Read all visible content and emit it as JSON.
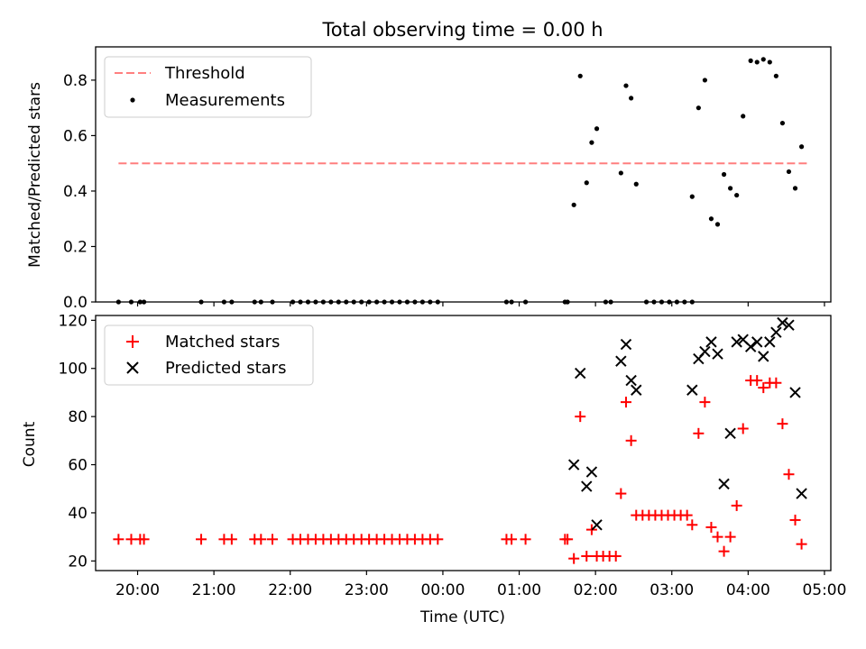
{
  "chart_data": [
    {
      "type": "scatter",
      "title": "Total observing time = 0.00 h",
      "xlabel": "",
      "ylabel": "Matched/Predicted stars",
      "xlim": [
        "19:27",
        "05:05"
      ],
      "ylim": [
        0,
        0.92
      ],
      "yticks": [
        "0.0",
        "0.2",
        "0.4",
        "0.6",
        "0.8"
      ],
      "grid": false,
      "legend_position": "top-left",
      "threshold": {
        "name": "Threshold",
        "value": 0.5,
        "x_range": [
          "19:45",
          "04:47"
        ],
        "color": "#ff7f7f",
        "style": "dashed"
      },
      "series": [
        {
          "name": "Measurements",
          "color": "#000000",
          "marker": "dot",
          "points": [
            [
              "19:45",
              0
            ],
            [
              "19:55",
              0
            ],
            [
              "20:02",
              0
            ],
            [
              "20:05",
              0
            ],
            [
              "20:50",
              0
            ],
            [
              "21:08",
              0
            ],
            [
              "21:14",
              0
            ],
            [
              "21:32",
              0
            ],
            [
              "21:37",
              0
            ],
            [
              "21:46",
              0
            ],
            [
              "22:02",
              0
            ],
            [
              "22:08",
              0
            ],
            [
              "22:14",
              0
            ],
            [
              "22:20",
              0
            ],
            [
              "22:26",
              0
            ],
            [
              "22:32",
              0
            ],
            [
              "22:38",
              0
            ],
            [
              "22:44",
              0
            ],
            [
              "22:50",
              0
            ],
            [
              "22:56",
              0
            ],
            [
              "23:02",
              0
            ],
            [
              "23:08",
              0
            ],
            [
              "23:14",
              0
            ],
            [
              "23:20",
              0
            ],
            [
              "23:26",
              0
            ],
            [
              "23:32",
              0
            ],
            [
              "23:38",
              0
            ],
            [
              "23:44",
              0
            ],
            [
              "23:50",
              0
            ],
            [
              "23:56",
              0
            ],
            [
              "00:50",
              0
            ],
            [
              "00:54",
              0
            ],
            [
              "01:05",
              0
            ],
            [
              "01:36",
              0
            ],
            [
              "01:38",
              0
            ],
            [
              "02:08",
              0
            ],
            [
              "02:12",
              0
            ],
            [
              "02:40",
              0
            ],
            [
              "02:46",
              0
            ],
            [
              "02:52",
              0
            ],
            [
              "02:58",
              0
            ],
            [
              "03:04",
              0
            ],
            [
              "03:10",
              0
            ],
            [
              "03:16",
              0
            ],
            [
              "01:43",
              0.35
            ],
            [
              "01:48",
              0.815
            ],
            [
              "01:53",
              0.43
            ],
            [
              "01:57",
              0.575
            ],
            [
              "02:01",
              0.625
            ],
            [
              "02:20",
              0.465
            ],
            [
              "02:24",
              0.78
            ],
            [
              "02:28",
              0.735
            ],
            [
              "02:32",
              0.425
            ],
            [
              "03:16",
              0.38
            ],
            [
              "03:21",
              0.7
            ],
            [
              "03:26",
              0.8
            ],
            [
              "03:31",
              0.3
            ],
            [
              "03:36",
              0.28
            ],
            [
              "03:41",
              0.46
            ],
            [
              "03:46",
              0.41
            ],
            [
              "03:51",
              0.385
            ],
            [
              "03:56",
              0.67
            ],
            [
              "04:02",
              0.87
            ],
            [
              "04:07",
              0.865
            ],
            [
              "04:12",
              0.875
            ],
            [
              "04:17",
              0.865
            ],
            [
              "04:22",
              0.815
            ],
            [
              "04:27",
              0.645
            ],
            [
              "04:32",
              0.47
            ],
            [
              "04:37",
              0.41
            ],
            [
              "04:42",
              0.56
            ]
          ]
        }
      ]
    },
    {
      "type": "scatter",
      "title": "",
      "xlabel": "Time (UTC)",
      "ylabel": "Count",
      "xlim": [
        "19:27",
        "05:05"
      ],
      "ylim": [
        16,
        122
      ],
      "yticks": [
        "20",
        "40",
        "60",
        "80",
        "100",
        "120"
      ],
      "xticks": [
        "20:00",
        "21:00",
        "22:00",
        "23:00",
        "00:00",
        "01:00",
        "02:00",
        "03:00",
        "04:00",
        "05:00"
      ],
      "grid": false,
      "legend_position": "top-left",
      "series": [
        {
          "name": "Matched stars",
          "color": "#ff0000",
          "marker": "plus",
          "points": [
            [
              "19:45",
              29
            ],
            [
              "19:55",
              29
            ],
            [
              "20:02",
              29
            ],
            [
              "20:05",
              29
            ],
            [
              "20:50",
              29
            ],
            [
              "21:08",
              29
            ],
            [
              "21:14",
              29
            ],
            [
              "21:32",
              29
            ],
            [
              "21:37",
              29
            ],
            [
              "21:46",
              29
            ],
            [
              "22:02",
              29
            ],
            [
              "22:08",
              29
            ],
            [
              "22:14",
              29
            ],
            [
              "22:20",
              29
            ],
            [
              "22:26",
              29
            ],
            [
              "22:32",
              29
            ],
            [
              "22:38",
              29
            ],
            [
              "22:44",
              29
            ],
            [
              "22:50",
              29
            ],
            [
              "22:56",
              29
            ],
            [
              "23:02",
              29
            ],
            [
              "23:08",
              29
            ],
            [
              "23:14",
              29
            ],
            [
              "23:20",
              29
            ],
            [
              "23:26",
              29
            ],
            [
              "23:32",
              29
            ],
            [
              "23:38",
              29
            ],
            [
              "23:44",
              29
            ],
            [
              "23:50",
              29
            ],
            [
              "23:56",
              29
            ],
            [
              "00:50",
              29
            ],
            [
              "00:54",
              29
            ],
            [
              "01:05",
              29
            ],
            [
              "01:36",
              29
            ],
            [
              "01:38",
              29
            ],
            [
              "01:43",
              21
            ],
            [
              "01:48",
              80
            ],
            [
              "01:53",
              22
            ],
            [
              "01:57",
              33
            ],
            [
              "02:01",
              22
            ],
            [
              "02:06",
              22
            ],
            [
              "02:11",
              22
            ],
            [
              "02:16",
              22
            ],
            [
              "02:20",
              48
            ],
            [
              "02:24",
              86
            ],
            [
              "02:28",
              70
            ],
            [
              "02:32",
              39
            ],
            [
              "02:37",
              39
            ],
            [
              "02:42",
              39
            ],
            [
              "02:47",
              39
            ],
            [
              "02:52",
              39
            ],
            [
              "02:57",
              39
            ],
            [
              "03:02",
              39
            ],
            [
              "03:07",
              39
            ],
            [
              "03:12",
              39
            ],
            [
              "03:16",
              35
            ],
            [
              "03:21",
              73
            ],
            [
              "03:26",
              86
            ],
            [
              "03:31",
              34
            ],
            [
              "03:36",
              30
            ],
            [
              "03:41",
              24
            ],
            [
              "03:46",
              30
            ],
            [
              "03:51",
              43
            ],
            [
              "03:56",
              75
            ],
            [
              "04:02",
              95
            ],
            [
              "04:07",
              95
            ],
            [
              "04:12",
              92
            ],
            [
              "04:17",
              94
            ],
            [
              "04:22",
              94
            ],
            [
              "04:27",
              77
            ],
            [
              "04:32",
              56
            ],
            [
              "04:37",
              37
            ],
            [
              "04:42",
              27
            ]
          ]
        },
        {
          "name": "Predicted stars",
          "color": "#000000",
          "marker": "x",
          "points": [
            [
              "01:43",
              60
            ],
            [
              "01:48",
              98
            ],
            [
              "01:53",
              51
            ],
            [
              "01:57",
              57
            ],
            [
              "02:01",
              35
            ],
            [
              "02:20",
              103
            ],
            [
              "02:24",
              110
            ],
            [
              "02:28",
              95
            ],
            [
              "02:32",
              91
            ],
            [
              "03:16",
              91
            ],
            [
              "03:21",
              104
            ],
            [
              "03:26",
              107
            ],
            [
              "03:31",
              111
            ],
            [
              "03:36",
              106
            ],
            [
              "03:41",
              52
            ],
            [
              "03:46",
              73
            ],
            [
              "03:51",
              111
            ],
            [
              "03:56",
              112
            ],
            [
              "04:02",
              109
            ],
            [
              "04:07",
              111
            ],
            [
              "04:12",
              105
            ],
            [
              "04:17",
              111
            ],
            [
              "04:22",
              115
            ],
            [
              "04:27",
              119
            ],
            [
              "04:32",
              118
            ],
            [
              "04:37",
              90
            ],
            [
              "04:42",
              48
            ]
          ]
        }
      ]
    }
  ]
}
